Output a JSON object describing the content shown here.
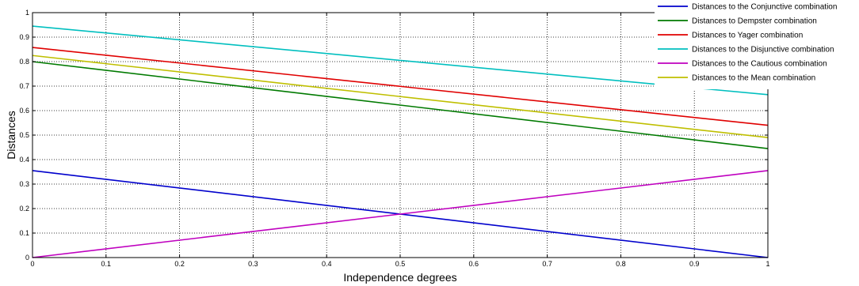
{
  "chart_data": {
    "type": "line",
    "xlabel": "Independence degrees",
    "ylabel": "Distances",
    "xlim": [
      0,
      1
    ],
    "ylim": [
      0,
      1
    ],
    "grid": true,
    "legend_position": "top-right",
    "x": [
      0,
      1
    ],
    "xticks": [
      "0",
      "0.1",
      "0.2",
      "0.3",
      "0.4",
      "0.5",
      "0.6",
      "0.7",
      "0.8",
      "0.9",
      "1"
    ],
    "yticks": [
      "0",
      "0.1",
      "0.2",
      "0.3",
      "0.4",
      "0.5",
      "0.6",
      "0.7",
      "0.8",
      "0.9",
      "1"
    ],
    "series": [
      {
        "name": "Distances to the Conjunctive combination",
        "color": "#0000cc",
        "values": [
          0.355,
          0.0
        ]
      },
      {
        "name": "Distances to Dempster combination",
        "color": "#007a00",
        "values": [
          0.8,
          0.445
        ]
      },
      {
        "name": "Distances to Yager combination",
        "color": "#e00000",
        "values": [
          0.858,
          0.54
        ]
      },
      {
        "name": "Distances to the Disjunctive combination",
        "color": "#00bfbf",
        "values": [
          0.945,
          0.665
        ]
      },
      {
        "name": "Distances to the Cautious combination",
        "color": "#bf00bf",
        "values": [
          0.0,
          0.355
        ]
      },
      {
        "name": "Distances to the Mean combination",
        "color": "#bfbf00",
        "values": [
          0.825,
          0.49
        ]
      }
    ]
  }
}
